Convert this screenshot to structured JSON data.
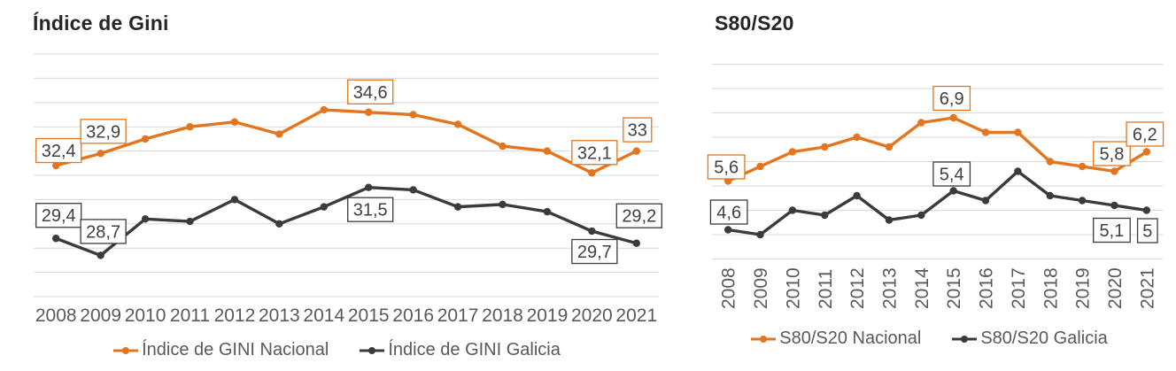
{
  "colors": {
    "nacional_line": "#E2751D",
    "galicia_line": "#3B3B3B",
    "gridline": "#D9D9D9",
    "axis_label_text": "#595959",
    "data_label_text": "#404040",
    "title_text": "#262626",
    "background": "#FFFFFF"
  },
  "chart_data": [
    {
      "id": "gini",
      "type": "line",
      "title": "Índice de Gini",
      "categories": [
        "2008",
        "2009",
        "2010",
        "2011",
        "2012",
        "2013",
        "2014",
        "2015",
        "2016",
        "2017",
        "2018",
        "2019",
        "2020",
        "2021"
      ],
      "ylim": [
        27,
        37
      ],
      "grid_step": 1,
      "grid": true,
      "y_axis_labels_shown": false,
      "x_labels_vertical": false,
      "legend_position": "bottom",
      "series": [
        {
          "name": "Índice de GINI Nacional",
          "color": "#E2751D",
          "values": [
            32.4,
            32.9,
            33.5,
            34.0,
            34.2,
            33.7,
            34.7,
            34.6,
            34.5,
            34.1,
            33.2,
            33.0,
            32.1,
            33.0
          ],
          "point_labels": [
            {
              "index": 0,
              "text": "32,4",
              "dx": 3,
              "dy": -17
            },
            {
              "index": 1,
              "text": "32,9",
              "dx": 3,
              "dy": -25
            },
            {
              "index": 7,
              "text": "34,6",
              "dx": 2,
              "dy": -23
            },
            {
              "index": 12,
              "text": "32,1",
              "dx": 3,
              "dy": -23
            },
            {
              "index": 13,
              "text": "33",
              "dx": 1,
              "dy": -24
            }
          ]
        },
        {
          "name": "Índice de GINI Galicia",
          "color": "#3B3B3B",
          "values": [
            29.4,
            28.7,
            30.2,
            30.1,
            31.0,
            30.0,
            30.7,
            31.5,
            31.4,
            30.7,
            30.8,
            30.5,
            29.7,
            29.2
          ],
          "point_labels": [
            {
              "index": 0,
              "text": "29,4",
              "dx": 3,
              "dy": -26
            },
            {
              "index": 1,
              "text": "28,7",
              "dx": 3,
              "dy": -27
            },
            {
              "index": 7,
              "text": "31,5",
              "dx": 2,
              "dy": 25
            },
            {
              "index": 12,
              "text": "29,7",
              "dx": 3,
              "dy": 23
            },
            {
              "index": 13,
              "text": "29,2",
              "dx": 3,
              "dy": -31
            }
          ]
        }
      ]
    },
    {
      "id": "s80s20",
      "type": "line",
      "title": "S80/S20",
      "categories": [
        "2008",
        "2009",
        "2010",
        "2011",
        "2012",
        "2013",
        "2014",
        "2015",
        "2016",
        "2017",
        "2018",
        "2019",
        "2020",
        "2021"
      ],
      "ylim": [
        4,
        8
      ],
      "grid_step": 0.5,
      "grid": true,
      "y_axis_labels_shown": false,
      "x_labels_vertical": true,
      "legend_position": "bottom",
      "series": [
        {
          "name": "S80/S20 Nacional",
          "color": "#E2751D",
          "values": [
            5.6,
            5.9,
            6.2,
            6.3,
            6.5,
            6.3,
            6.8,
            6.9,
            6.6,
            6.6,
            6.0,
            5.9,
            5.8,
            6.2
          ],
          "point_labels": [
            {
              "index": 0,
              "text": "5,6",
              "dx": -2,
              "dy": -16
            },
            {
              "index": 7,
              "text": "6,9",
              "dx": -2,
              "dy": -22
            },
            {
              "index": 12,
              "text": "5,8",
              "dx": -3,
              "dy": -20
            },
            {
              "index": 13,
              "text": "6,2",
              "dx": -2,
              "dy": -20
            }
          ]
        },
        {
          "name": "S80/S20 Galicia",
          "color": "#3B3B3B",
          "values": [
            4.6,
            4.5,
            5.0,
            4.9,
            5.3,
            4.8,
            4.9,
            5.4,
            5.2,
            5.8,
            5.3,
            5.2,
            5.1,
            5.0
          ],
          "point_labels": [
            {
              "index": 0,
              "text": "4,6",
              "dx": 1,
              "dy": -20
            },
            {
              "index": 7,
              "text": "5,4",
              "dx": -2,
              "dy": -19
            },
            {
              "index": 12,
              "text": "5,1",
              "dx": -3,
              "dy": 28
            },
            {
              "index": 13,
              "text": "5",
              "dx": 1,
              "dy": 23
            }
          ]
        }
      ]
    }
  ]
}
